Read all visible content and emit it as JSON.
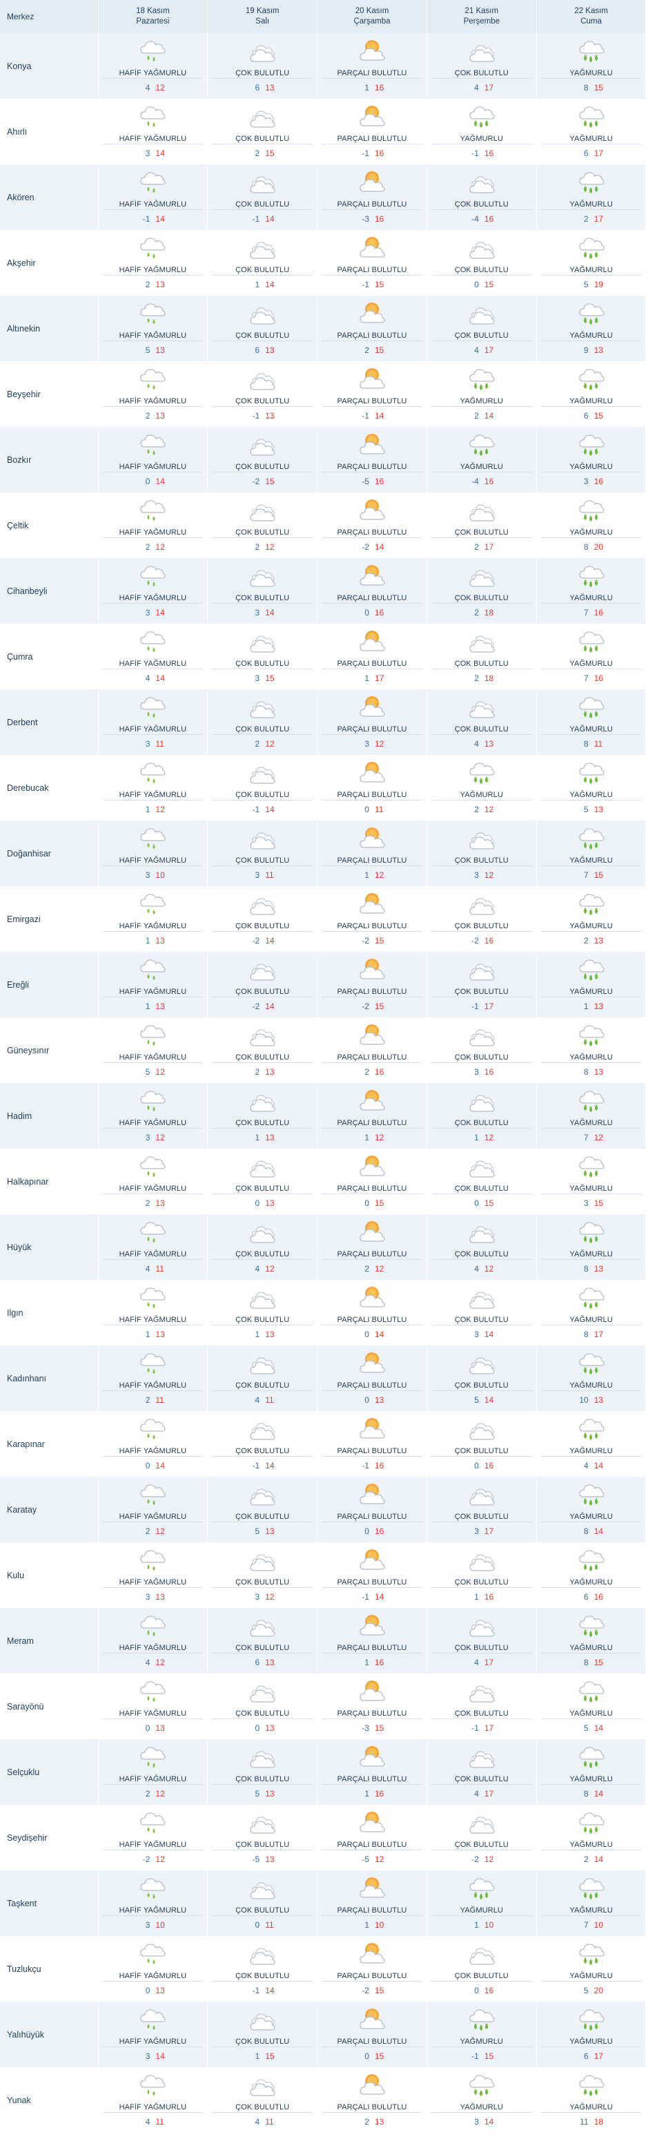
{
  "header": {
    "merkez": "Merkez",
    "days": [
      {
        "date": "18 Kasım",
        "weekday": "Pazartesi"
      },
      {
        "date": "19 Kasım",
        "weekday": "Salı"
      },
      {
        "date": "20 Kasım",
        "weekday": "Çarşamba"
      },
      {
        "date": "21 Kasım",
        "weekday": "Perşembe"
      },
      {
        "date": "22 Kasım",
        "weekday": "Cuma"
      }
    ]
  },
  "colors": {
    "min": "#2f6fb0",
    "max": "#e23a30",
    "alt_row": "#edf3f8",
    "header_bg": "#e4ecf3"
  },
  "conditions": {
    "hafif": {
      "label": "HAFİF YAĞMURLU",
      "icon": "light-rain-icon"
    },
    "cok": {
      "label": "ÇOK BULUTLU",
      "icon": "cloudy-icon"
    },
    "parcali": {
      "label": "PARÇALI BULUTLU",
      "icon": "partly-cloudy-icon"
    },
    "yagmur": {
      "label": "YAĞMURLU",
      "icon": "rain-icon"
    }
  },
  "rows": [
    {
      "city": "Konya",
      "days": [
        {
          "c": "hafif",
          "min": "4",
          "max": "12"
        },
        {
          "c": "cok",
          "min": "6",
          "max": "13"
        },
        {
          "c": "parcali",
          "min": "1",
          "max": "16"
        },
        {
          "c": "cok",
          "min": "4",
          "max": "17"
        },
        {
          "c": "yagmur",
          "min": "8",
          "max": "15"
        }
      ]
    },
    {
      "city": "Ahırlı",
      "days": [
        {
          "c": "hafif",
          "min": "3",
          "max": "14"
        },
        {
          "c": "cok",
          "min": "2",
          "max": "15"
        },
        {
          "c": "parcali",
          "min": "-1",
          "max": "16"
        },
        {
          "c": "yagmur",
          "min": "-1",
          "max": "16"
        },
        {
          "c": "yagmur",
          "min": "6",
          "max": "17"
        }
      ]
    },
    {
      "city": "Akören",
      "days": [
        {
          "c": "hafif",
          "min": "-1",
          "max": "14"
        },
        {
          "c": "cok",
          "min": "-1",
          "max": "14"
        },
        {
          "c": "parcali",
          "min": "-3",
          "max": "16"
        },
        {
          "c": "cok",
          "min": "-4",
          "max": "16"
        },
        {
          "c": "yagmur",
          "min": "2",
          "max": "17"
        }
      ]
    },
    {
      "city": "Akşehir",
      "days": [
        {
          "c": "hafif",
          "min": "2",
          "max": "13"
        },
        {
          "c": "cok",
          "min": "1",
          "max": "14"
        },
        {
          "c": "parcali",
          "min": "-1",
          "max": "15"
        },
        {
          "c": "cok",
          "min": "0",
          "max": "15"
        },
        {
          "c": "yagmur",
          "min": "5",
          "max": "19"
        }
      ]
    },
    {
      "city": "Altınekin",
      "days": [
        {
          "c": "hafif",
          "min": "5",
          "max": "13"
        },
        {
          "c": "cok",
          "min": "6",
          "max": "13"
        },
        {
          "c": "parcali",
          "min": "2",
          "max": "15"
        },
        {
          "c": "cok",
          "min": "4",
          "max": "17"
        },
        {
          "c": "yagmur",
          "min": "9",
          "max": "13"
        }
      ]
    },
    {
      "city": "Beyşehir",
      "days": [
        {
          "c": "hafif",
          "min": "2",
          "max": "13"
        },
        {
          "c": "cok",
          "min": "-1",
          "max": "13"
        },
        {
          "c": "parcali",
          "min": "-1",
          "max": "14"
        },
        {
          "c": "yagmur",
          "min": "2",
          "max": "14"
        },
        {
          "c": "yagmur",
          "min": "6",
          "max": "15"
        }
      ]
    },
    {
      "city": "Bozkır",
      "days": [
        {
          "c": "hafif",
          "min": "0",
          "max": "14"
        },
        {
          "c": "cok",
          "min": "-2",
          "max": "15"
        },
        {
          "c": "parcali",
          "min": "-5",
          "max": "16"
        },
        {
          "c": "yagmur",
          "min": "-4",
          "max": "16"
        },
        {
          "c": "yagmur",
          "min": "3",
          "max": "16"
        }
      ]
    },
    {
      "city": "Çeltik",
      "days": [
        {
          "c": "hafif",
          "min": "2",
          "max": "12"
        },
        {
          "c": "cok",
          "min": "2",
          "max": "12"
        },
        {
          "c": "parcali",
          "min": "-2",
          "max": "14"
        },
        {
          "c": "cok",
          "min": "2",
          "max": "17"
        },
        {
          "c": "yagmur",
          "min": "8",
          "max": "20"
        }
      ]
    },
    {
      "city": "Cihanbeyli",
      "days": [
        {
          "c": "hafif",
          "min": "3",
          "max": "14"
        },
        {
          "c": "cok",
          "min": "3",
          "max": "14"
        },
        {
          "c": "parcali",
          "min": "0",
          "max": "16"
        },
        {
          "c": "cok",
          "min": "2",
          "max": "18"
        },
        {
          "c": "yagmur",
          "min": "7",
          "max": "16"
        }
      ]
    },
    {
      "city": "Çumra",
      "days": [
        {
          "c": "hafif",
          "min": "4",
          "max": "14"
        },
        {
          "c": "cok",
          "min": "3",
          "max": "15"
        },
        {
          "c": "parcali",
          "min": "1",
          "max": "17"
        },
        {
          "c": "cok",
          "min": "2",
          "max": "18"
        },
        {
          "c": "yagmur",
          "min": "7",
          "max": "16"
        }
      ]
    },
    {
      "city": "Derbent",
      "days": [
        {
          "c": "hafif",
          "min": "3",
          "max": "11"
        },
        {
          "c": "cok",
          "min": "2",
          "max": "12"
        },
        {
          "c": "parcali",
          "min": "3",
          "max": "12"
        },
        {
          "c": "cok",
          "min": "4",
          "max": "13"
        },
        {
          "c": "yagmur",
          "min": "8",
          "max": "11"
        }
      ]
    },
    {
      "city": "Derebucak",
      "days": [
        {
          "c": "hafif",
          "min": "1",
          "max": "12"
        },
        {
          "c": "cok",
          "min": "-1",
          "max": "14"
        },
        {
          "c": "parcali",
          "min": "0",
          "max": "11"
        },
        {
          "c": "yagmur",
          "min": "2",
          "max": "12"
        },
        {
          "c": "yagmur",
          "min": "5",
          "max": "13"
        }
      ]
    },
    {
      "city": "Doğanhisar",
      "days": [
        {
          "c": "hafif",
          "min": "3",
          "max": "10"
        },
        {
          "c": "cok",
          "min": "3",
          "max": "11"
        },
        {
          "c": "parcali",
          "min": "1",
          "max": "12"
        },
        {
          "c": "cok",
          "min": "3",
          "max": "12"
        },
        {
          "c": "yagmur",
          "min": "7",
          "max": "15"
        }
      ]
    },
    {
      "city": "Emirgazi",
      "days": [
        {
          "c": "hafif",
          "min": "1",
          "max": "13"
        },
        {
          "c": "cok",
          "min": "-2",
          "max": "14"
        },
        {
          "c": "parcali",
          "min": "-2",
          "max": "15"
        },
        {
          "c": "cok",
          "min": "-2",
          "max": "16"
        },
        {
          "c": "yagmur",
          "min": "2",
          "max": "13"
        }
      ]
    },
    {
      "city": "Ereğli",
      "days": [
        {
          "c": "hafif",
          "min": "1",
          "max": "13"
        },
        {
          "c": "cok",
          "min": "-2",
          "max": "14"
        },
        {
          "c": "parcali",
          "min": "-2",
          "max": "15"
        },
        {
          "c": "cok",
          "min": "-1",
          "max": "17"
        },
        {
          "c": "yagmur",
          "min": "1",
          "max": "13"
        }
      ]
    },
    {
      "city": "Güneysınır",
      "days": [
        {
          "c": "hafif",
          "min": "5",
          "max": "12"
        },
        {
          "c": "cok",
          "min": "2",
          "max": "13"
        },
        {
          "c": "parcali",
          "min": "2",
          "max": "16"
        },
        {
          "c": "cok",
          "min": "3",
          "max": "16"
        },
        {
          "c": "yagmur",
          "min": "8",
          "max": "13"
        }
      ]
    },
    {
      "city": "Hadim",
      "days": [
        {
          "c": "hafif",
          "min": "3",
          "max": "12"
        },
        {
          "c": "cok",
          "min": "1",
          "max": "13"
        },
        {
          "c": "parcali",
          "min": "1",
          "max": "12"
        },
        {
          "c": "cok",
          "min": "1",
          "max": "12"
        },
        {
          "c": "yagmur",
          "min": "7",
          "max": "12"
        }
      ]
    },
    {
      "city": "Halkapınar",
      "days": [
        {
          "c": "hafif",
          "min": "2",
          "max": "13"
        },
        {
          "c": "cok",
          "min": "0",
          "max": "13"
        },
        {
          "c": "parcali",
          "min": "0",
          "max": "15"
        },
        {
          "c": "cok",
          "min": "0",
          "max": "15"
        },
        {
          "c": "yagmur",
          "min": "3",
          "max": "15"
        }
      ]
    },
    {
      "city": "Hüyük",
      "days": [
        {
          "c": "hafif",
          "min": "4",
          "max": "11"
        },
        {
          "c": "cok",
          "min": "4",
          "max": "12"
        },
        {
          "c": "parcali",
          "min": "2",
          "max": "12"
        },
        {
          "c": "cok",
          "min": "4",
          "max": "12"
        },
        {
          "c": "yagmur",
          "min": "8",
          "max": "13"
        }
      ]
    },
    {
      "city": "Ilgın",
      "days": [
        {
          "c": "hafif",
          "min": "1",
          "max": "13"
        },
        {
          "c": "cok",
          "min": "1",
          "max": "13"
        },
        {
          "c": "parcali",
          "min": "0",
          "max": "14"
        },
        {
          "c": "cok",
          "min": "3",
          "max": "14"
        },
        {
          "c": "yagmur",
          "min": "8",
          "max": "17"
        }
      ]
    },
    {
      "city": "Kadınhanı",
      "days": [
        {
          "c": "hafif",
          "min": "2",
          "max": "11"
        },
        {
          "c": "cok",
          "min": "4",
          "max": "11"
        },
        {
          "c": "parcali",
          "min": "0",
          "max": "13"
        },
        {
          "c": "cok",
          "min": "5",
          "max": "14"
        },
        {
          "c": "yagmur",
          "min": "10",
          "max": "13"
        }
      ]
    },
    {
      "city": "Karapınar",
      "days": [
        {
          "c": "hafif",
          "min": "0",
          "max": "14"
        },
        {
          "c": "cok",
          "min": "-1",
          "max": "14"
        },
        {
          "c": "parcali",
          "min": "-1",
          "max": "16"
        },
        {
          "c": "cok",
          "min": "0",
          "max": "16"
        },
        {
          "c": "yagmur",
          "min": "4",
          "max": "14"
        }
      ]
    },
    {
      "city": "Karatay",
      "days": [
        {
          "c": "hafif",
          "min": "2",
          "max": "12"
        },
        {
          "c": "cok",
          "min": "5",
          "max": "13"
        },
        {
          "c": "parcali",
          "min": "0",
          "max": "16"
        },
        {
          "c": "cok",
          "min": "3",
          "max": "17"
        },
        {
          "c": "yagmur",
          "min": "8",
          "max": "14"
        }
      ]
    },
    {
      "city": "Kulu",
      "days": [
        {
          "c": "hafif",
          "min": "3",
          "max": "13"
        },
        {
          "c": "cok",
          "min": "3",
          "max": "12"
        },
        {
          "c": "parcali",
          "min": "-1",
          "max": "14"
        },
        {
          "c": "cok",
          "min": "1",
          "max": "16"
        },
        {
          "c": "yagmur",
          "min": "6",
          "max": "16"
        }
      ]
    },
    {
      "city": "Meram",
      "days": [
        {
          "c": "hafif",
          "min": "4",
          "max": "12"
        },
        {
          "c": "cok",
          "min": "6",
          "max": "13"
        },
        {
          "c": "parcali",
          "min": "1",
          "max": "16"
        },
        {
          "c": "cok",
          "min": "4",
          "max": "17"
        },
        {
          "c": "yagmur",
          "min": "8",
          "max": "15"
        }
      ]
    },
    {
      "city": "Sarayönü",
      "days": [
        {
          "c": "hafif",
          "min": "0",
          "max": "13"
        },
        {
          "c": "cok",
          "min": "0",
          "max": "13"
        },
        {
          "c": "parcali",
          "min": "-3",
          "max": "15"
        },
        {
          "c": "cok",
          "min": "-1",
          "max": "17"
        },
        {
          "c": "yagmur",
          "min": "5",
          "max": "14"
        }
      ]
    },
    {
      "city": "Selçuklu",
      "days": [
        {
          "c": "hafif",
          "min": "2",
          "max": "12"
        },
        {
          "c": "cok",
          "min": "5",
          "max": "13"
        },
        {
          "c": "parcali",
          "min": "1",
          "max": "16"
        },
        {
          "c": "cok",
          "min": "4",
          "max": "17"
        },
        {
          "c": "yagmur",
          "min": "8",
          "max": "14"
        }
      ]
    },
    {
      "city": "Seydişehir",
      "days": [
        {
          "c": "hafif",
          "min": "-2",
          "max": "12"
        },
        {
          "c": "cok",
          "min": "-5",
          "max": "13"
        },
        {
          "c": "parcali",
          "min": "-5",
          "max": "12"
        },
        {
          "c": "cok",
          "min": "-2",
          "max": "12"
        },
        {
          "c": "yagmur",
          "min": "2",
          "max": "14"
        }
      ]
    },
    {
      "city": "Taşkent",
      "days": [
        {
          "c": "hafif",
          "min": "3",
          "max": "10"
        },
        {
          "c": "cok",
          "min": "0",
          "max": "11"
        },
        {
          "c": "parcali",
          "min": "1",
          "max": "10"
        },
        {
          "c": "yagmur",
          "min": "1",
          "max": "10"
        },
        {
          "c": "yagmur",
          "min": "7",
          "max": "10"
        }
      ]
    },
    {
      "city": "Tuzlukçu",
      "days": [
        {
          "c": "hafif",
          "min": "0",
          "max": "13"
        },
        {
          "c": "cok",
          "min": "-1",
          "max": "14"
        },
        {
          "c": "parcali",
          "min": "-2",
          "max": "15"
        },
        {
          "c": "cok",
          "min": "0",
          "max": "16"
        },
        {
          "c": "yagmur",
          "min": "5",
          "max": "20"
        }
      ]
    },
    {
      "city": "Yalıhüyük",
      "days": [
        {
          "c": "hafif",
          "min": "3",
          "max": "14"
        },
        {
          "c": "cok",
          "min": "1",
          "max": "15"
        },
        {
          "c": "parcali",
          "min": "0",
          "max": "15"
        },
        {
          "c": "yagmur",
          "min": "-1",
          "max": "15"
        },
        {
          "c": "yagmur",
          "min": "6",
          "max": "17"
        }
      ]
    },
    {
      "city": "Yunak",
      "days": [
        {
          "c": "hafif",
          "min": "4",
          "max": "11"
        },
        {
          "c": "cok",
          "min": "4",
          "max": "11"
        },
        {
          "c": "parcali",
          "min": "2",
          "max": "13"
        },
        {
          "c": "yagmur",
          "min": "3",
          "max": "14"
        },
        {
          "c": "yagmur",
          "min": "11",
          "max": "18"
        }
      ]
    }
  ]
}
